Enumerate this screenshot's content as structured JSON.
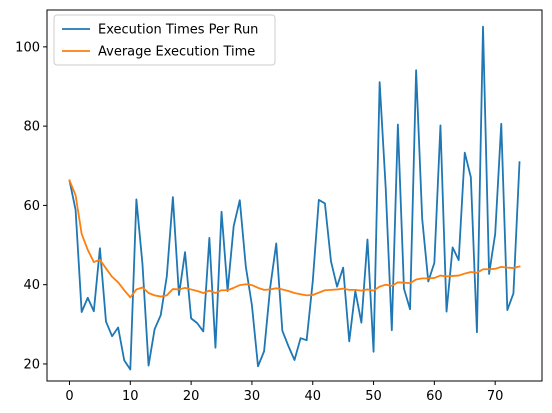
{
  "chart_data": {
    "type": "line",
    "title": "",
    "xlabel": "",
    "ylabel": "",
    "xlim": [
      -3.7,
      77.7
    ],
    "ylim": [
      15.7,
      109.3
    ],
    "xticks": [
      0,
      10,
      20,
      30,
      40,
      50,
      60,
      70
    ],
    "yticks": [
      20,
      40,
      60,
      80,
      100
    ],
    "grid": false,
    "legend_position": "top-left",
    "series": [
      {
        "name": "Execution Times Per Run",
        "color": "#1f77b4",
        "x": [
          0,
          1,
          2,
          3,
          4,
          5,
          6,
          7,
          8,
          9,
          10,
          11,
          12,
          13,
          14,
          15,
          16,
          17,
          18,
          19,
          20,
          21,
          22,
          23,
          24,
          25,
          26,
          27,
          28,
          29,
          30,
          31,
          32,
          33,
          34,
          35,
          36,
          37,
          38,
          39,
          40,
          41,
          42,
          43,
          44,
          45,
          46,
          47,
          48,
          49,
          50,
          51,
          52,
          53,
          54,
          55,
          56,
          57,
          58,
          59,
          60,
          61,
          62,
          63,
          64,
          65,
          66,
          67,
          68,
          69,
          70,
          71,
          72,
          73,
          74
        ],
        "values": [
          66.3,
          58.9,
          33.1,
          36.7,
          33.3,
          49.2,
          30.7,
          27.0,
          29.2,
          20.9,
          18.6,
          61.5,
          45.2,
          19.6,
          28.8,
          32.3,
          42.1,
          62.1,
          37.4,
          48.2,
          31.5,
          30.3,
          28.2,
          51.8,
          24.1,
          58.4,
          38.4,
          54.8,
          61.3,
          44.5,
          34.8,
          19.4,
          23.2,
          39.3,
          50.4,
          28.4,
          24.5,
          21.0,
          26.5,
          26.0,
          40.8,
          61.4,
          60.5,
          45.9,
          39.5,
          44.3,
          25.7,
          38.4,
          30.4,
          51.4,
          23.1,
          91.1,
          64.3,
          28.5,
          80.4,
          39.0,
          33.8,
          94.1,
          56.6,
          40.8,
          45.5,
          80.2,
          33.2,
          49.4,
          46.2,
          73.3,
          67.1,
          28.0,
          105.1,
          42.7,
          52.8,
          80.6,
          33.6,
          37.8,
          70.9
        ]
      },
      {
        "name": "Average Execution Time",
        "color": "#ff7f0e",
        "x": [
          0,
          1,
          2,
          3,
          4,
          5,
          6,
          7,
          8,
          9,
          10,
          11,
          12,
          13,
          14,
          15,
          16,
          17,
          18,
          19,
          20,
          21,
          22,
          23,
          24,
          25,
          26,
          27,
          28,
          29,
          30,
          31,
          32,
          33,
          34,
          35,
          36,
          37,
          38,
          39,
          40,
          41,
          42,
          43,
          44,
          45,
          46,
          47,
          48,
          49,
          50,
          51,
          52,
          53,
          54,
          55,
          56,
          57,
          58,
          59,
          60,
          61,
          62,
          63,
          64,
          65,
          66,
          67,
          68,
          69,
          70,
          71,
          72,
          73,
          74
        ],
        "values": [
          66.3,
          62.6,
          52.8,
          48.8,
          45.7,
          46.3,
          44.1,
          42.0,
          40.6,
          38.6,
          36.8,
          38.8,
          39.3,
          37.9,
          37.3,
          37.0,
          37.3,
          38.9,
          38.8,
          39.2,
          38.8,
          38.4,
          37.9,
          38.5,
          37.9,
          38.6,
          38.6,
          39.2,
          39.9,
          40.1,
          39.9,
          39.2,
          38.7,
          38.8,
          39.1,
          38.8,
          38.4,
          37.9,
          37.6,
          37.3,
          37.4,
          38.0,
          38.6,
          38.7,
          38.8,
          39.0,
          38.7,
          38.7,
          38.5,
          38.8,
          38.5,
          39.5,
          40.0,
          39.7,
          40.6,
          40.5,
          40.4,
          41.3,
          41.6,
          41.6,
          41.7,
          42.3,
          42.1,
          42.2,
          42.3,
          42.8,
          43.2,
          43.0,
          43.9,
          43.9,
          44.0,
          44.5,
          44.3,
          44.2,
          44.6
        ]
      }
    ]
  }
}
